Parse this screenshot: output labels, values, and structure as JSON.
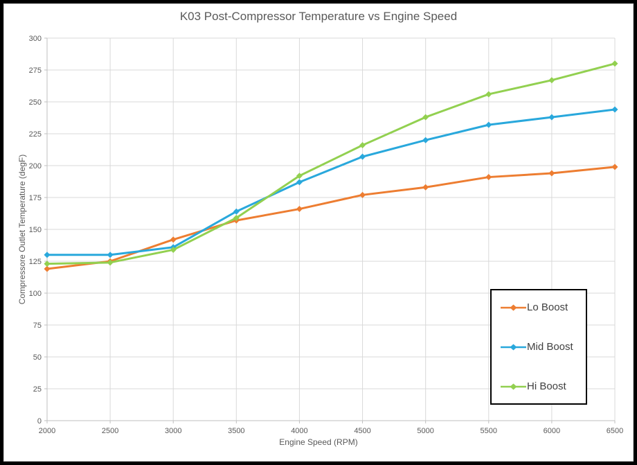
{
  "chart_data": {
    "type": "line",
    "title": "K03 Post-Compressor Temperature vs Engine Speed",
    "xlabel": "Engine Speed (RPM)",
    "ylabel": "Compressore Outlet Temperature  (degF)",
    "x": [
      2000,
      2500,
      3000,
      3500,
      4000,
      4500,
      5000,
      5500,
      6000,
      6500
    ],
    "series": [
      {
        "name": "Lo Boost",
        "color": "#ED7D31",
        "values": [
          119,
          125,
          142,
          157,
          166,
          177,
          183,
          191,
          194,
          199
        ]
      },
      {
        "name": "Mid Boost",
        "color": "#29A8DC",
        "values": [
          130,
          130,
          136,
          164,
          187,
          207,
          220,
          232,
          238,
          244
        ]
      },
      {
        "name": "Hi Boost",
        "color": "#92D050",
        "values": [
          123,
          124,
          134,
          159,
          192,
          216,
          238,
          256,
          267,
          280
        ]
      }
    ],
    "xlim": [
      2000,
      6500
    ],
    "ylim": [
      0,
      300
    ],
    "yticks": [
      0,
      25,
      50,
      75,
      100,
      125,
      150,
      175,
      200,
      225,
      250,
      275,
      300
    ],
    "grid": true,
    "marker": "diamond",
    "legend_position": "inside-right-lower"
  },
  "colors": {
    "background": "#FFFFFF",
    "frame_border": "#000000",
    "legend_border": "#000000",
    "gridline": "#D9D9D9",
    "axis": "#BFBFBF",
    "tick_text": "#595959",
    "title_text": "#595959"
  }
}
